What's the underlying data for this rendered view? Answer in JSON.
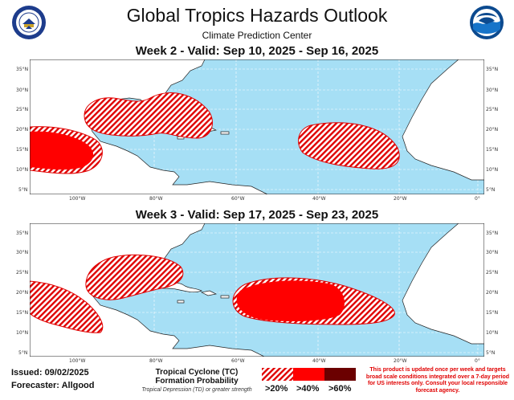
{
  "title": "Global Tropics Hazards Outlook",
  "subtitle": "Climate Prediction Center",
  "week2": {
    "title": "Week 2 - Valid: Sep 10, 2025 - Sep 16, 2025"
  },
  "week3": {
    "title": "Week 3 - Valid: Sep 17, 2025 - Sep 23, 2025"
  },
  "axes": {
    "lat_labels": [
      "35°N",
      "30°N",
      "25°N",
      "20°N",
      "15°N",
      "10°N",
      "5°N"
    ],
    "lon_labels": [
      "100°W",
      "80°W",
      "60°W",
      "40°W",
      "20°W",
      "0°"
    ]
  },
  "footer": {
    "issued": "Issued: 09/02/2025",
    "forecaster": "Forecaster: Allgood",
    "tc_line1": "Tropical Cyclone (TC)",
    "tc_line2": "Formation Probability",
    "tc_line3": "Tropical Depression (TD) or greater strength",
    "legend": [
      {
        "label": ">20%",
        "style": "hatched",
        "color": "#e00000"
      },
      {
        "label": ">40%",
        "style": "solid",
        "color": "#ff0000"
      },
      {
        "label": ">60%",
        "style": "solid",
        "color": "#6b0000"
      }
    ],
    "disclaimer": "This product is updated once per week and targets broad scale conditions integrated over a 7-day period for US interests only. Consult your local responsible forecast agency."
  },
  "logos": {
    "left": "doc-seal-icon",
    "right": "noaa-logo-icon"
  },
  "colors": {
    "ocean": "#a6dff5",
    "land": "#ffffff",
    "hazard_20": "#e00000",
    "hazard_40": "#ff0000",
    "hazard_60": "#6b0000"
  }
}
